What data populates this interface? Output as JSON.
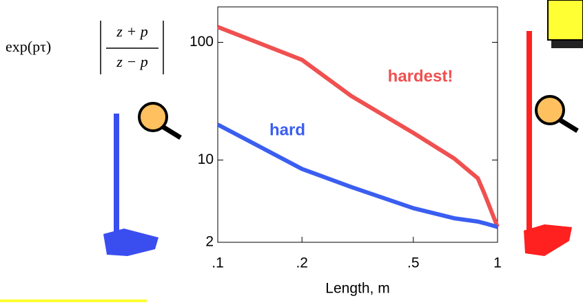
{
  "chart_data": {
    "type": "line",
    "ylabel": {
      "prefix": "exp(pτ)",
      "numerator": "z + p",
      "denominator": "z − p"
    },
    "xlabel": "Length, m",
    "x": [
      0.1,
      0.2,
      0.3,
      0.5,
      0.7,
      0.85,
      0.9,
      1
    ],
    "series": [
      {
        "name": "hardest!",
        "color": "#f05050",
        "values": [
          135,
          71,
          35,
          17,
          10.3,
          7,
          5.1,
          2.7
        ]
      },
      {
        "name": "hard",
        "color": "#3a5ef0",
        "values": [
          20,
          8.4,
          5.9,
          3.9,
          3.2,
          3.0,
          2.9,
          2.7
        ]
      }
    ],
    "xlim": [
      0.1,
      1
    ],
    "ylim": [
      2,
      200
    ],
    "log_x": true,
    "log_y": true,
    "xticks": [
      {
        "value": 0.1,
        "label": ".1"
      },
      {
        "value": 0.2,
        "label": ".2"
      },
      {
        "value": 0.5,
        "label": ".5"
      },
      1
    ],
    "yticks": [
      2,
      10,
      100
    ]
  }
}
